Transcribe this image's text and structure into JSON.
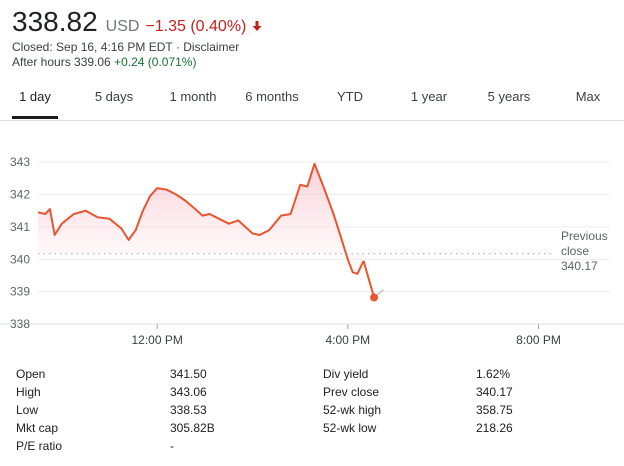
{
  "quote": {
    "price": "338.82",
    "currency": "USD",
    "change": "−1.35 (0.40%)",
    "closed_text": "Closed: Sep 16, 4:16 PM EDT · Disclaimer",
    "after_hours_prefix": "After hours 339.06",
    "after_hours_change": "+0.24 (0.071%)",
    "down_arrow_icon": "arrow-down-icon",
    "colors": {
      "negative": "#c5221f",
      "positive": "#137333",
      "line": "#e8552f"
    }
  },
  "tabs": [
    {
      "label": "1 day",
      "active": true
    },
    {
      "label": "5 days"
    },
    {
      "label": "1 month"
    },
    {
      "label": "6 months"
    },
    {
      "label": "YTD"
    },
    {
      "label": "1 year"
    },
    {
      "label": "5 years"
    },
    {
      "label": "Max"
    }
  ],
  "chart_data": {
    "type": "line",
    "y_ticks": [
      "343",
      "342",
      "341",
      "340",
      "339",
      "338"
    ],
    "ylim": [
      338,
      343.5
    ],
    "x_ticks": [
      "12:00 PM",
      "4:00 PM",
      "8:00 PM"
    ],
    "x_tick_hours": [
      12,
      16,
      20
    ],
    "x_range_hours": [
      9.5,
      21.5
    ],
    "previous_close": {
      "label_line1": "Previous",
      "label_line2": "close",
      "value_label": "340.17",
      "value": 340.17
    },
    "series": [
      {
        "hours": [
          9.5,
          9.65,
          9.75,
          9.85,
          10.0,
          10.25,
          10.5,
          10.75,
          11.0,
          11.25,
          11.4,
          11.55,
          11.7,
          11.85,
          12.0,
          12.2,
          12.4,
          12.6,
          12.8,
          12.95,
          13.1,
          13.3,
          13.5,
          13.7,
          13.85,
          14.0,
          14.15,
          14.35,
          14.6,
          14.8,
          15.0,
          15.15,
          15.3,
          15.5,
          15.7,
          15.85,
          16.0,
          16.1,
          16.2,
          16.33
        ],
        "values": [
          341.45,
          341.4,
          341.55,
          340.75,
          341.1,
          341.4,
          341.5,
          341.3,
          341.25,
          340.95,
          340.6,
          340.9,
          341.5,
          341.95,
          342.2,
          342.15,
          342.0,
          341.8,
          341.55,
          341.35,
          341.4,
          341.25,
          341.1,
          341.2,
          341.0,
          340.8,
          340.75,
          340.9,
          341.35,
          341.4,
          342.3,
          342.25,
          342.95,
          342.2,
          341.4,
          340.7,
          340.0,
          339.6,
          339.55,
          339.95
        ]
      },
      {
        "hours": [
          16.33,
          16.55,
          16.75
        ],
        "values": [
          339.95,
          338.82,
          339.06
        ]
      }
    ]
  },
  "stats": {
    "left": [
      {
        "label": "Open",
        "value": "341.50"
      },
      {
        "label": "High",
        "value": "343.06"
      },
      {
        "label": "Low",
        "value": "338.53"
      },
      {
        "label": "Mkt cap",
        "value": "305.82B"
      },
      {
        "label": "P/E ratio",
        "value": "-"
      }
    ],
    "right": [
      {
        "label": "Div yield",
        "value": "1.62%"
      },
      {
        "label": "Prev close",
        "value": "340.17"
      },
      {
        "label": "52-wk high",
        "value": "358.75"
      },
      {
        "label": "52-wk low",
        "value": "218.26"
      }
    ]
  }
}
